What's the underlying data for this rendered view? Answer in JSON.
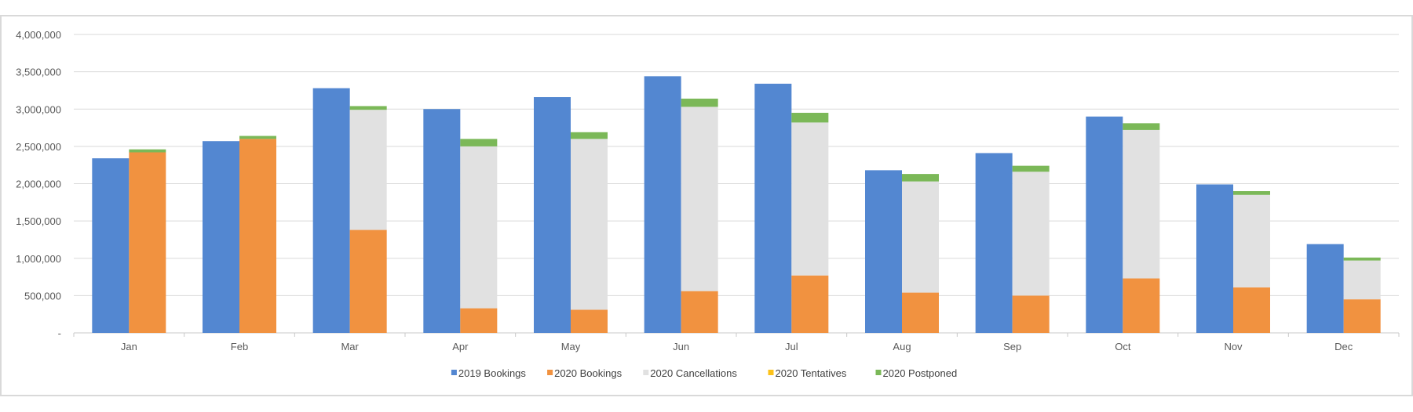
{
  "chart_data": {
    "type": "bar",
    "title": "",
    "xlabel": "",
    "ylabel": "",
    "categories": [
      "Jan",
      "Feb",
      "Mar",
      "Apr",
      "May",
      "Jun",
      "Jul",
      "Aug",
      "Sep",
      "Oct",
      "Nov",
      "Dec"
    ],
    "ylim": [
      0,
      4000000
    ],
    "yticks": [
      0,
      500000,
      1000000,
      1500000,
      2000000,
      2500000,
      3000000,
      3500000,
      4000000
    ],
    "ytick_labels": [
      "-",
      "500,000",
      "1,000,000",
      "1,500,000",
      "2,000,000",
      "2,500,000",
      "3,000,000",
      "3,500,000",
      "4,000,000"
    ],
    "grid": true,
    "legend_position": "bottom",
    "series": [
      {
        "name": "2019 Bookings",
        "stack": "2019",
        "color": "#5387d1",
        "values": [
          2340000,
          2570000,
          3280000,
          3000000,
          3160000,
          3440000,
          3340000,
          2180000,
          2410000,
          2900000,
          1990000,
          1190000
        ]
      },
      {
        "name": "2020 Bookings",
        "stack": "2020",
        "color": "#f19240",
        "values": [
          2420000,
          2600000,
          1380000,
          330000,
          310000,
          560000,
          770000,
          540000,
          500000,
          730000,
          610000,
          450000
        ]
      },
      {
        "name": "2020 Cancellations",
        "stack": "2020",
        "color": "#e1e1e1",
        "values": [
          0,
          0,
          1610000,
          2170000,
          2290000,
          2470000,
          2050000,
          1490000,
          1660000,
          1990000,
          1240000,
          520000
        ]
      },
      {
        "name": "2020 Tentatives",
        "stack": "2020",
        "color": "#fcc21a",
        "values": [
          0,
          0,
          0,
          0,
          0,
          0,
          0,
          0,
          0,
          0,
          0,
          0
        ]
      },
      {
        "name": "2020 Postponed",
        "stack": "2020",
        "color": "#7bb858",
        "values": [
          40000,
          40000,
          50000,
          100000,
          90000,
          110000,
          130000,
          100000,
          80000,
          90000,
          50000,
          40000
        ]
      }
    ]
  }
}
